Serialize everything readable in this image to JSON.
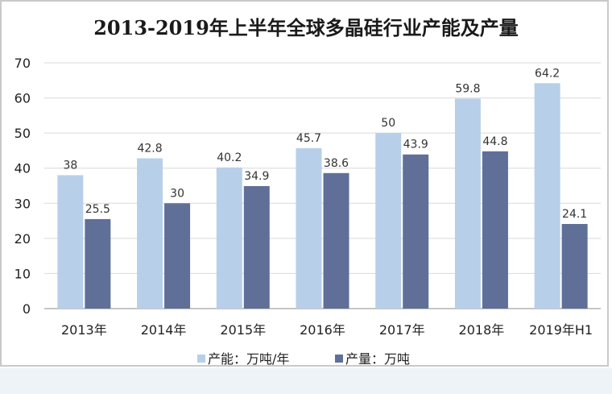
{
  "chart_data": {
    "type": "bar",
    "title": "2013-2019年上半年全球多晶硅行业产能及产量",
    "categories": [
      "2013年",
      "2014年",
      "2015年",
      "2016年",
      "2017年",
      "2018年",
      "2019年H1"
    ],
    "series": [
      {
        "name": "产能：万吨/年",
        "values": [
          38,
          42.8,
          40.2,
          45.7,
          50,
          59.8,
          64.2
        ],
        "color": "#b8cfe9"
      },
      {
        "name": "产量：万吨",
        "values": [
          25.5,
          30,
          34.9,
          38.6,
          43.9,
          44.8,
          24.1
        ],
        "color": "#5f6f98"
      }
    ],
    "ylim": [
      0,
      70
    ],
    "yticks": [
      "0",
      "10",
      "20",
      "30",
      "40",
      "50",
      "60",
      "70"
    ],
    "grid": true,
    "legend_position": "bottom"
  }
}
